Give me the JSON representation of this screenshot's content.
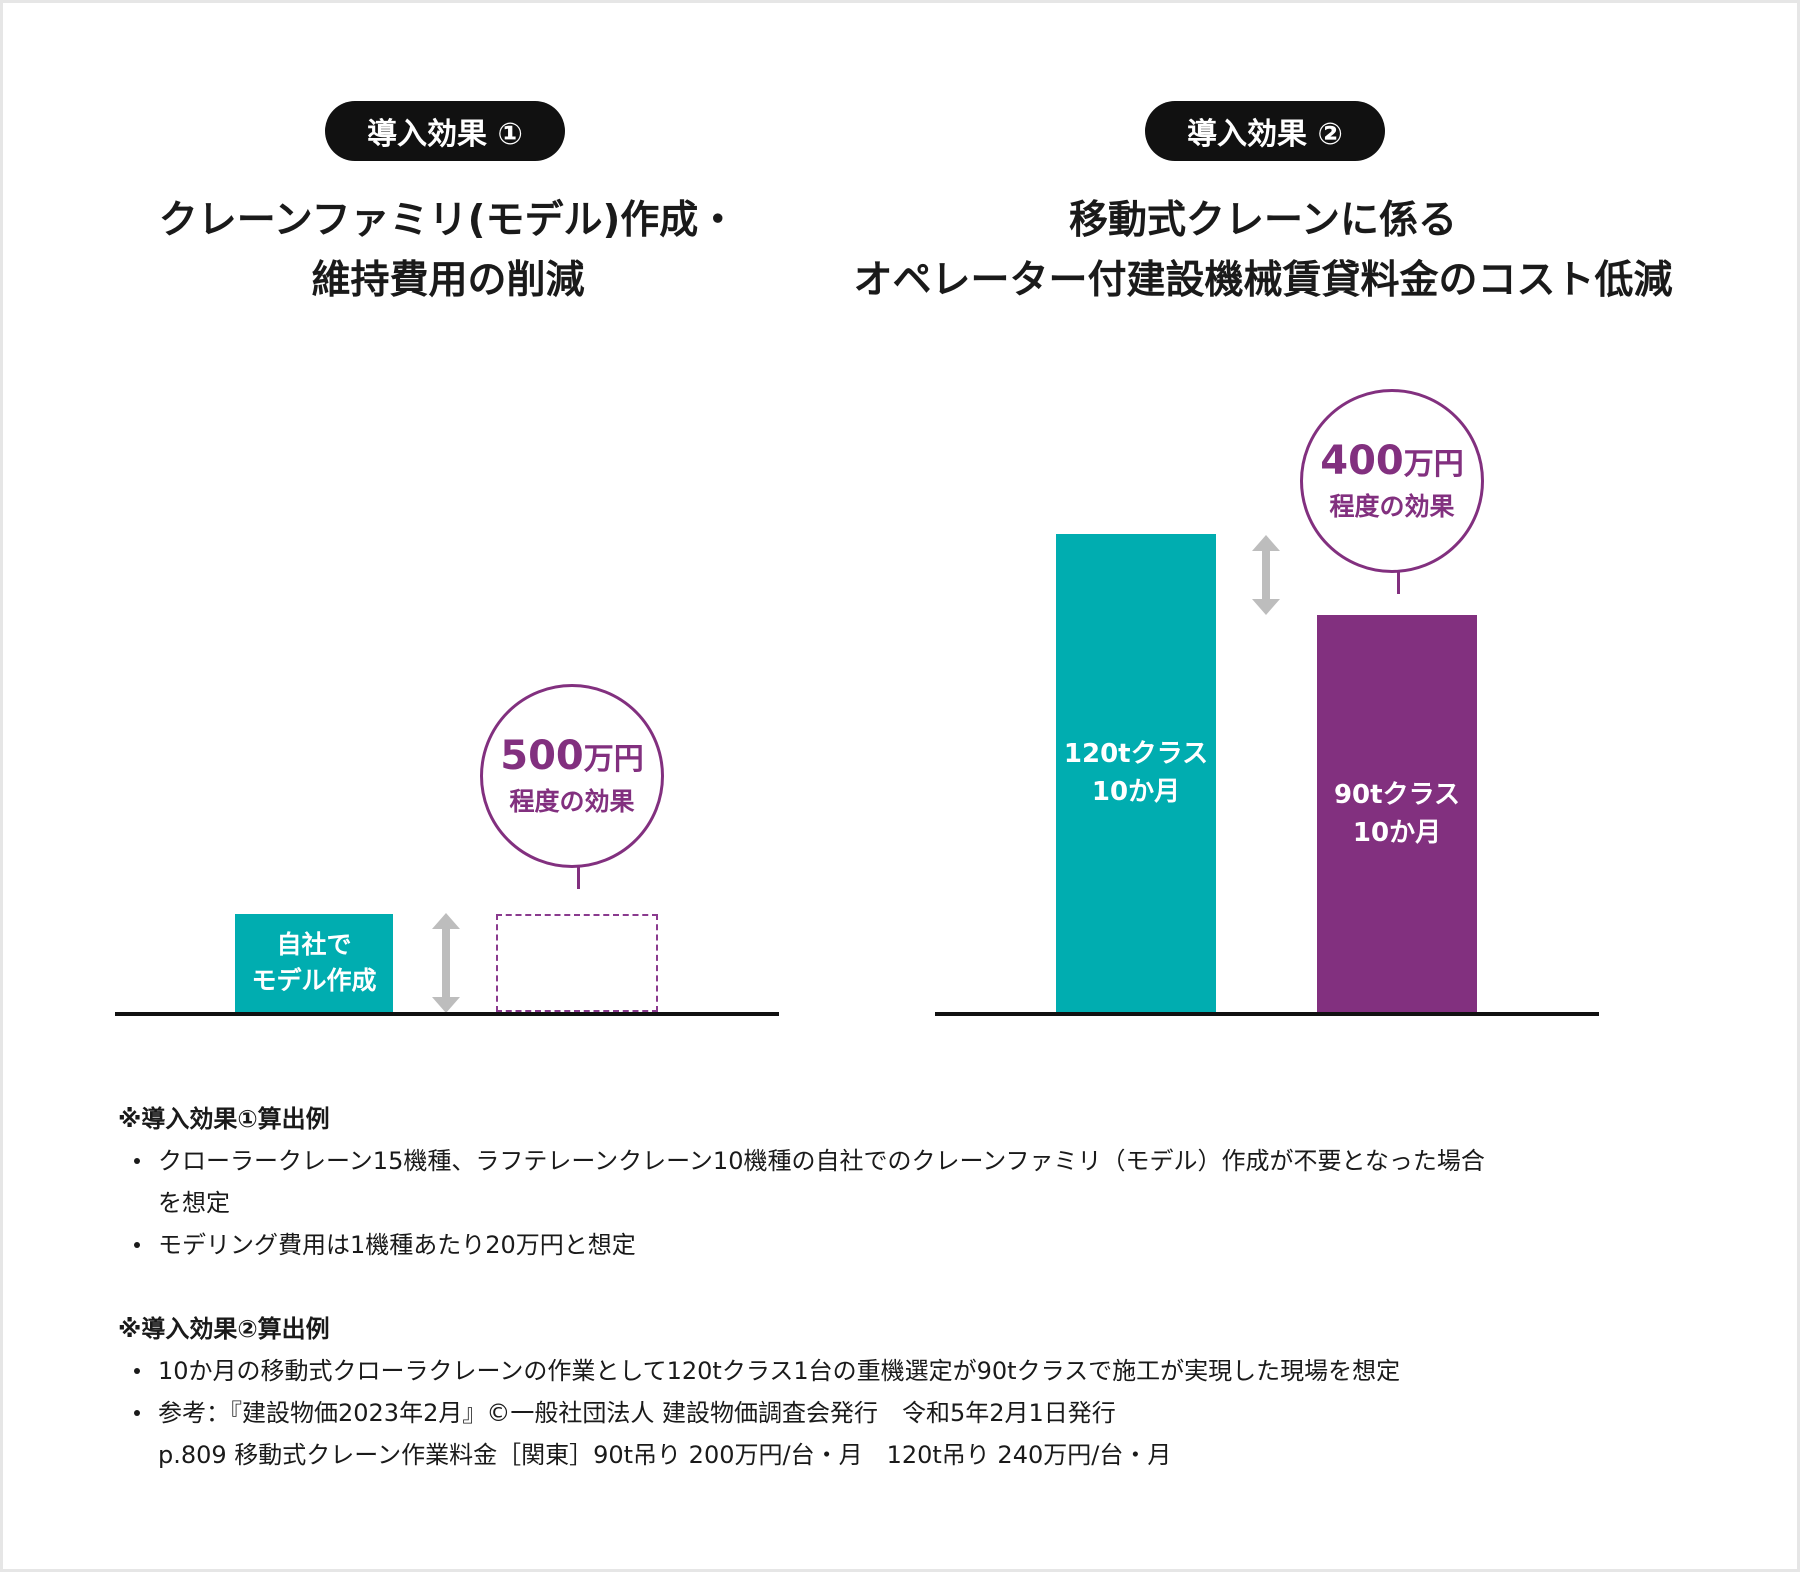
{
  "panel1": {
    "pill": "導入効果 ①",
    "heading_line1": "クレーンファミリ(モデル)作成・",
    "heading_line2": "維持費用の削減",
    "bar_label": "自社で\nモデル作成",
    "effect_amount": "500",
    "effect_unit": "万円",
    "effect_sub": "程度の効果"
  },
  "panel2": {
    "pill": "導入効果 ②",
    "heading_line1": "移動式クレーンに係る",
    "heading_line2": "オペレーター付建設機械賃貸料金のコスト低減",
    "bar1_label": "120tクラス\n10か月",
    "bar2_label": "90tクラス\n10か月",
    "effect_amount": "400",
    "effect_unit": "万円",
    "effect_sub": "程度の効果"
  },
  "notes": {
    "title1": "※導入効果①算出例",
    "items1": [
      "クローラークレーン15機種、ラフテレーンクレーン10機種の自社でのクレーンファミリ（モデル）作成が不要となった場合\nを想定",
      "モデリング費用は1機種あたり20万円と想定"
    ],
    "title2": "※導入効果②算出例",
    "items2": [
      "10か月の移動式クローラクレーンの作業として120tクラス1台の重機選定が90tクラスで施工が実現した現場を想定",
      "参考：『建設物価2023年2月』©一般社団法人 建設物価調査会発行　令和5年2月1日発行\np.809 移動式クレーン作業料金［関東］90t吊り 200万円/台・月　120t吊り 240万円/台・月"
    ]
  },
  "colors": {
    "teal": "#00adb0",
    "purple": "#82307f",
    "arrow": "#bdbdbd"
  },
  "chart_data": [
    {
      "type": "bar",
      "categories": [
        "自社でモデル作成",
        ""
      ],
      "values": [
        500,
        0
      ],
      "difference": 500,
      "effect_label": "500万円 程度の効果"
    },
    {
      "type": "bar",
      "categories": [
        "120tクラス 10か月",
        "90tクラス 10か月"
      ],
      "values": [
        2400,
        2000
      ],
      "difference": 400,
      "effect_label": "400万円 程度の効果"
    }
  ]
}
